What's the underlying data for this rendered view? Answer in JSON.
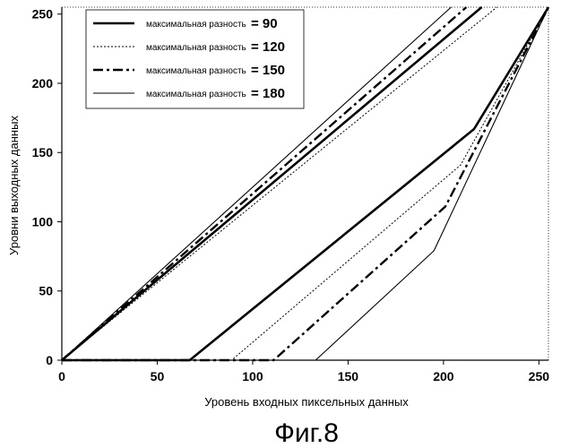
{
  "chart_data": {
    "type": "line",
    "xlabel": "Уровень входных пиксельных данных",
    "ylabel": "Уровни выходных данных",
    "xlim": [
      0,
      255
    ],
    "ylim": [
      0,
      255
    ],
    "xticks": [
      0,
      50,
      100,
      150,
      200,
      250
    ],
    "yticks": [
      0,
      50,
      100,
      150,
      200,
      250
    ],
    "grid": false,
    "legend_position": "top-left",
    "series": [
      {
        "name": "максимальная разность",
        "value_label": "= 90",
        "style": "solid-thick",
        "segments": [
          [
            [
              0,
              0
            ],
            [
              220,
              255
            ]
          ],
          [
            [
              0,
              0
            ],
            [
              67,
              0
            ],
            [
              216,
              167
            ],
            [
              255,
              255
            ]
          ]
        ]
      },
      {
        "name": "максимальная разность",
        "value_label": "= 120",
        "style": "dotted",
        "segments": [
          [
            [
              0,
              0
            ],
            [
              228,
              255
            ]
          ],
          [
            [
              0,
              0
            ],
            [
              89,
              0
            ],
            [
              209,
              141
            ],
            [
              255,
              255
            ]
          ]
        ]
      },
      {
        "name": "максимальная разность",
        "value_label": "= 150",
        "style": "dash-dot",
        "segments": [
          [
            [
              0,
              0
            ],
            [
              212,
              255
            ]
          ],
          [
            [
              0,
              0
            ],
            [
              111,
              0
            ],
            [
              201,
              111
            ],
            [
              255,
              255
            ]
          ]
        ]
      },
      {
        "name": "максимальная разность",
        "value_label": "= 180",
        "style": "solid-thin",
        "segments": [
          [
            [
              0,
              0
            ],
            [
              204,
              255
            ]
          ],
          [
            [
              0,
              0
            ],
            [
              133,
              0
            ],
            [
              195,
              79
            ],
            [
              255,
              255
            ]
          ]
        ]
      }
    ]
  },
  "caption": "Фиг.8"
}
